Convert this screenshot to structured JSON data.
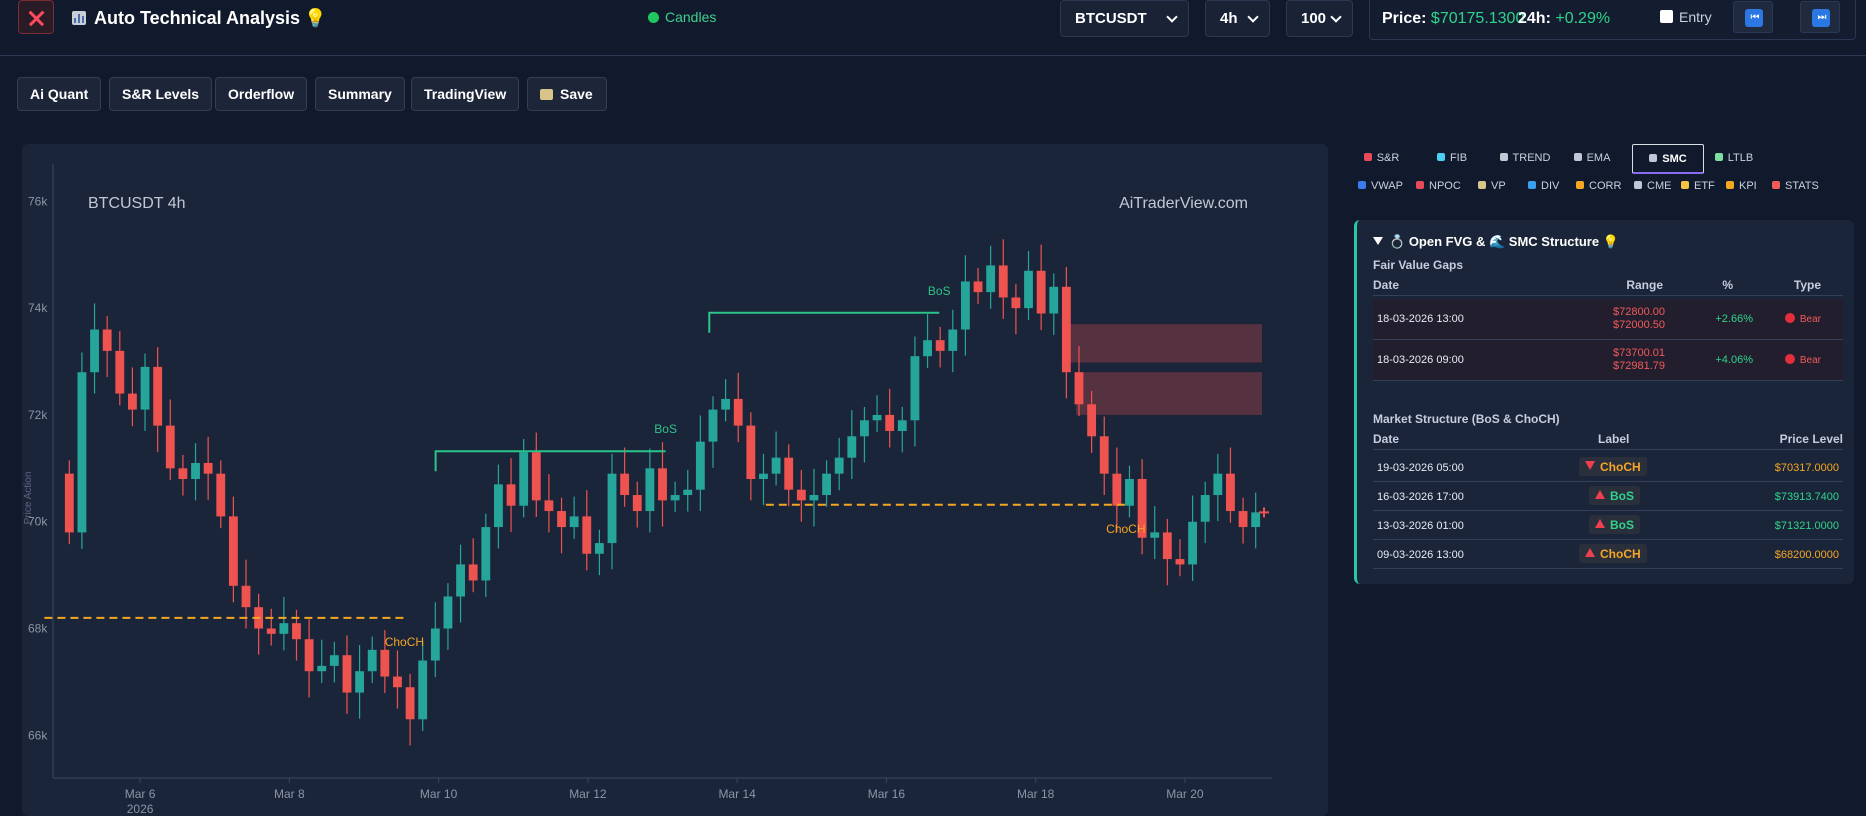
{
  "app": {
    "title": "Auto Technical Analysis",
    "mode": "Candles",
    "symbol": "BTCUSDT",
    "interval": "4h",
    "candles_count": "100",
    "price_label": "Price:",
    "price": "$70175.1300",
    "change_label": "24h:",
    "change": "+0.29%",
    "entry_label": "Entry",
    "nav_prev": "⏮",
    "nav_next": "⏭"
  },
  "toolbar": [
    "Ai Quant",
    "S&R Levels",
    "Orderflow",
    "Summary",
    "TradingView",
    "Save"
  ],
  "chart": {
    "symbol_label": "BTCUSDT 4h",
    "watermark": "AiTraderView.com",
    "y_axis_label": "Price Action",
    "y_ticks": [
      "66k",
      "68k",
      "70k",
      "72k",
      "74k",
      "76k"
    ],
    "x_ticks": [
      "Mar 6",
      "Mar 8",
      "Mar 10",
      "Mar 12",
      "Mar 14",
      "Mar 16",
      "Mar 18",
      "Mar 20"
    ],
    "x_year": "2026",
    "annotations": [
      "BoS",
      "BoS",
      "ChoCH",
      "ChoCH"
    ],
    "colors": {
      "bull": "#26a69a",
      "bear": "#ef5350",
      "bos": "#2bc48a",
      "choch": "#f5a623"
    }
  },
  "chart_data": {
    "type": "candlestick",
    "y_range": [
      65200,
      76700
    ],
    "x_range": [
      "2026-03-04 20:00",
      "2026-03-21 04:00"
    ],
    "fvg_zones": [
      {
        "start": "2026-03-18 13:00",
        "top": 72800.0,
        "bottom": 72000.5
      },
      {
        "start": "2026-03-18 09:00",
        "top": 73700.01,
        "bottom": 72981.79
      }
    ],
    "structure": [
      {
        "label": "ChoCH",
        "date": "2026-03-19 05:00",
        "level": 70317.0
      },
      {
        "label": "BoS",
        "date": "2026-03-16 17:00",
        "level": 73913.74
      },
      {
        "label": "BoS",
        "date": "2026-03-13 01:00",
        "level": 71321.0
      },
      {
        "label": "ChoCH",
        "date": "2026-03-09 13:00",
        "level": 68200.0
      }
    ]
  },
  "panel": {
    "tabs": [
      {
        "label": "S&R",
        "icon": "shield-icon"
      },
      {
        "label": "FIB",
        "icon": "diamond-icon"
      },
      {
        "label": "TREND",
        "icon": "trend-line-icon"
      },
      {
        "label": "EMA",
        "icon": "flag-icon"
      },
      {
        "label": "SMC",
        "icon": "ring-icon"
      },
      {
        "label": "LTLB",
        "icon": "triangle-icon"
      }
    ],
    "tabs2": [
      {
        "label": "VWAP",
        "icon": "vwap-icon"
      },
      {
        "label": "NPOC",
        "icon": "magnet-icon"
      },
      {
        "label": "VP",
        "icon": "volume-profile-icon"
      },
      {
        "label": "DIV",
        "icon": "divergence-icon"
      },
      {
        "label": "CORR",
        "icon": "correlation-icon"
      },
      {
        "label": "CME",
        "icon": "gap-icon"
      },
      {
        "label": "ETF",
        "icon": "coin-icon"
      },
      {
        "label": "KPI",
        "icon": "medal-icon"
      },
      {
        "label": "STATS",
        "icon": "thermometer-icon"
      }
    ],
    "card_title": "Open FVG & 🌊 SMC Structure",
    "fvg_title": "Fair Value Gaps",
    "fvg_headers": [
      "Date",
      "Range",
      "%",
      "Type"
    ],
    "fvg_rows": [
      {
        "date": "18-03-2026 13:00",
        "high": "$72800.00",
        "low": "$72000.50",
        "pct": "+2.66%",
        "type": "Bear"
      },
      {
        "date": "18-03-2026 09:00",
        "high": "$73700.01",
        "low": "$72981.79",
        "pct": "+4.06%",
        "type": "Bear"
      }
    ],
    "ms_title": "Market Structure (BoS & ChoCH)",
    "ms_headers": [
      "Date",
      "Label",
      "Price Level"
    ],
    "ms_rows": [
      {
        "date": "19-03-2026 05:00",
        "label": "ChoCH",
        "dir": "down",
        "level": "$70317.0000"
      },
      {
        "date": "16-03-2026 17:00",
        "label": "BoS",
        "dir": "up",
        "level": "$73913.7400"
      },
      {
        "date": "13-03-2026 01:00",
        "label": "BoS",
        "dir": "up",
        "level": "$71321.0000"
      },
      {
        "date": "09-03-2026 13:00",
        "label": "ChoCH",
        "dir": "up",
        "level": "$68200.0000"
      }
    ]
  }
}
